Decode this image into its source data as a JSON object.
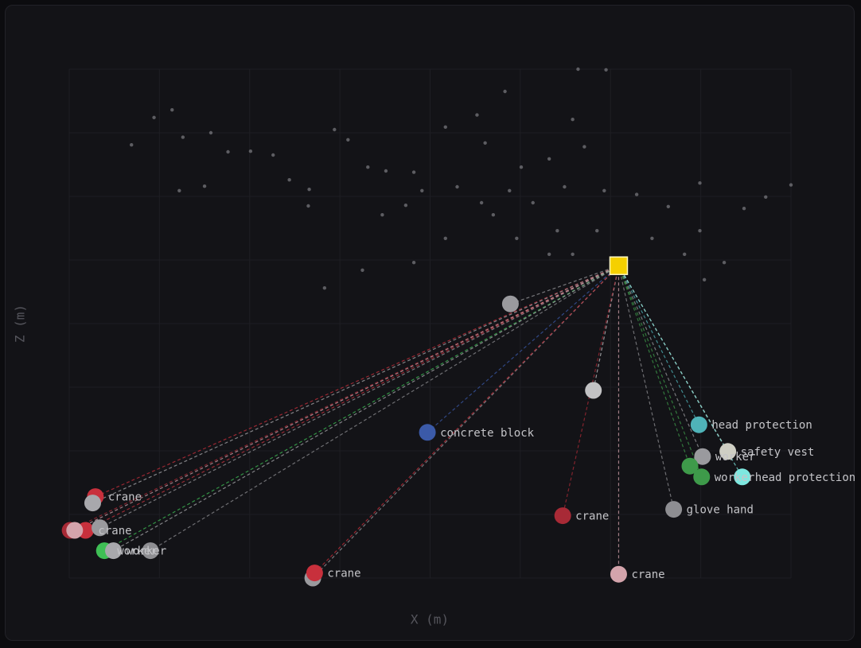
{
  "chart_data": {
    "type": "scatter",
    "x_label": "X (m)",
    "y_label": "Z (m)",
    "xlim": [
      0,
      8
    ],
    "ylim": [
      0,
      8
    ],
    "xticks": [
      0,
      1,
      2,
      3,
      4,
      5,
      6,
      7,
      8
    ],
    "yticks": [
      0,
      1,
      2,
      3,
      4,
      5,
      6,
      7,
      8
    ],
    "tick_labels": false,
    "grid": true,
    "cloud": {
      "color": "#77777c",
      "x": [
        0.69,
        0.94,
        1.14,
        1.26,
        1.57,
        1.76,
        2.01,
        2.26,
        2.44,
        2.66,
        2.65,
        1.22,
        1.5,
        2.94,
        3.09,
        3.31,
        3.51,
        3.82,
        3.91,
        3.73,
        4.17,
        4.3,
        4.57,
        4.7,
        4.88,
        5.01,
        5.14,
        5.32,
        5.49,
        5.58,
        5.71,
        5.93,
        6.29,
        6.46,
        6.82,
        6.99,
        7.48,
        7.72,
        8.0,
        7.26,
        7.04,
        5.41,
        5.58,
        4.96,
        4.17,
        3.47,
        3.25,
        2.83,
        4.83,
        5.64,
        5.95,
        4.61,
        5.85,
        6.64,
        6.99,
        4.52,
        3.82,
        5.32
      ],
      "y": [
        6.81,
        7.24,
        7.36,
        6.93,
        7.0,
        6.7,
        6.71,
        6.65,
        6.26,
        6.11,
        5.85,
        6.09,
        6.16,
        7.05,
        6.89,
        6.46,
        6.4,
        6.38,
        6.09,
        5.86,
        7.09,
        6.15,
        5.9,
        5.71,
        6.09,
        6.46,
        5.9,
        6.59,
        6.15,
        7.21,
        6.78,
        6.09,
        6.03,
        5.34,
        5.09,
        5.46,
        5.81,
        5.99,
        6.18,
        4.96,
        4.69,
        5.46,
        5.09,
        5.34,
        5.34,
        5.71,
        4.84,
        4.56,
        7.65,
        8.0,
        7.99,
        6.84,
        5.46,
        5.84,
        6.21,
        7.28,
        4.96,
        5.09
      ]
    },
    "camera": {
      "x": 6.09,
      "y": 4.91,
      "color": "#f5d000"
    },
    "objects": [
      {
        "label": null,
        "x": 4.89,
        "y": 4.31,
        "color": "#9a9a9e"
      },
      {
        "label": null,
        "x": 5.81,
        "y": 2.95,
        "color": "#c2c2c4"
      },
      {
        "label": "concrete block",
        "x": 3.97,
        "y": 2.29,
        "color": "#3b5aa8"
      },
      {
        "label": "head protection",
        "x": 6.98,
        "y": 2.41,
        "color": "#4fb3b8"
      },
      {
        "label": "safety vest",
        "x": 7.3,
        "y": 1.99,
        "color": "#cfcfc4"
      },
      {
        "label": "worker",
        "x": 7.02,
        "y": 1.91,
        "color": "#9a9a9e"
      },
      {
        "label": null,
        "x": 6.88,
        "y": 1.76,
        "color": "#3e9a4a"
      },
      {
        "label": "worker",
        "x": 7.01,
        "y": 1.59,
        "color": "#3e9a4a"
      },
      {
        "label": "head protection",
        "x": 7.46,
        "y": 1.59,
        "color": "#7ee8e0"
      },
      {
        "label": "glove hand",
        "x": 6.7,
        "y": 1.08,
        "color": "#8e8e92"
      },
      {
        "label": "crane",
        "x": 5.47,
        "y": 0.98,
        "color": "#a82a36"
      },
      {
        "label": "crane",
        "x": 6.09,
        "y": 0.06,
        "color": "#d4a4ac"
      },
      {
        "label": null,
        "x": 2.7,
        "y": 0.0,
        "color": "#9a9a9e"
      },
      {
        "label": "crane",
        "x": 2.72,
        "y": 0.08,
        "color": "#c8303c"
      },
      {
        "label": "crane",
        "x": 0.29,
        "y": 1.28,
        "color": "#c8303c"
      },
      {
        "label": null,
        "x": 0.26,
        "y": 1.18,
        "color": "#a8a8ac"
      },
      {
        "label": null,
        "x": 0.01,
        "y": 0.75,
        "color": "#a82a36"
      },
      {
        "label": "crane",
        "x": 0.18,
        "y": 0.75,
        "color": "#c8303c"
      },
      {
        "label": null,
        "x": 0.06,
        "y": 0.75,
        "color": "#d4a4ac"
      },
      {
        "label": null,
        "x": 0.34,
        "y": 0.79,
        "color": "#9a9a9e"
      },
      {
        "label": "worker",
        "x": 0.39,
        "y": 0.43,
        "color": "#3fbf55"
      },
      {
        "label": "worker",
        "x": 0.49,
        "y": 0.43,
        "color": "#a8a8ac"
      },
      {
        "label": null,
        "x": 0.9,
        "y": 0.43,
        "color": "#8e8e92"
      }
    ]
  }
}
